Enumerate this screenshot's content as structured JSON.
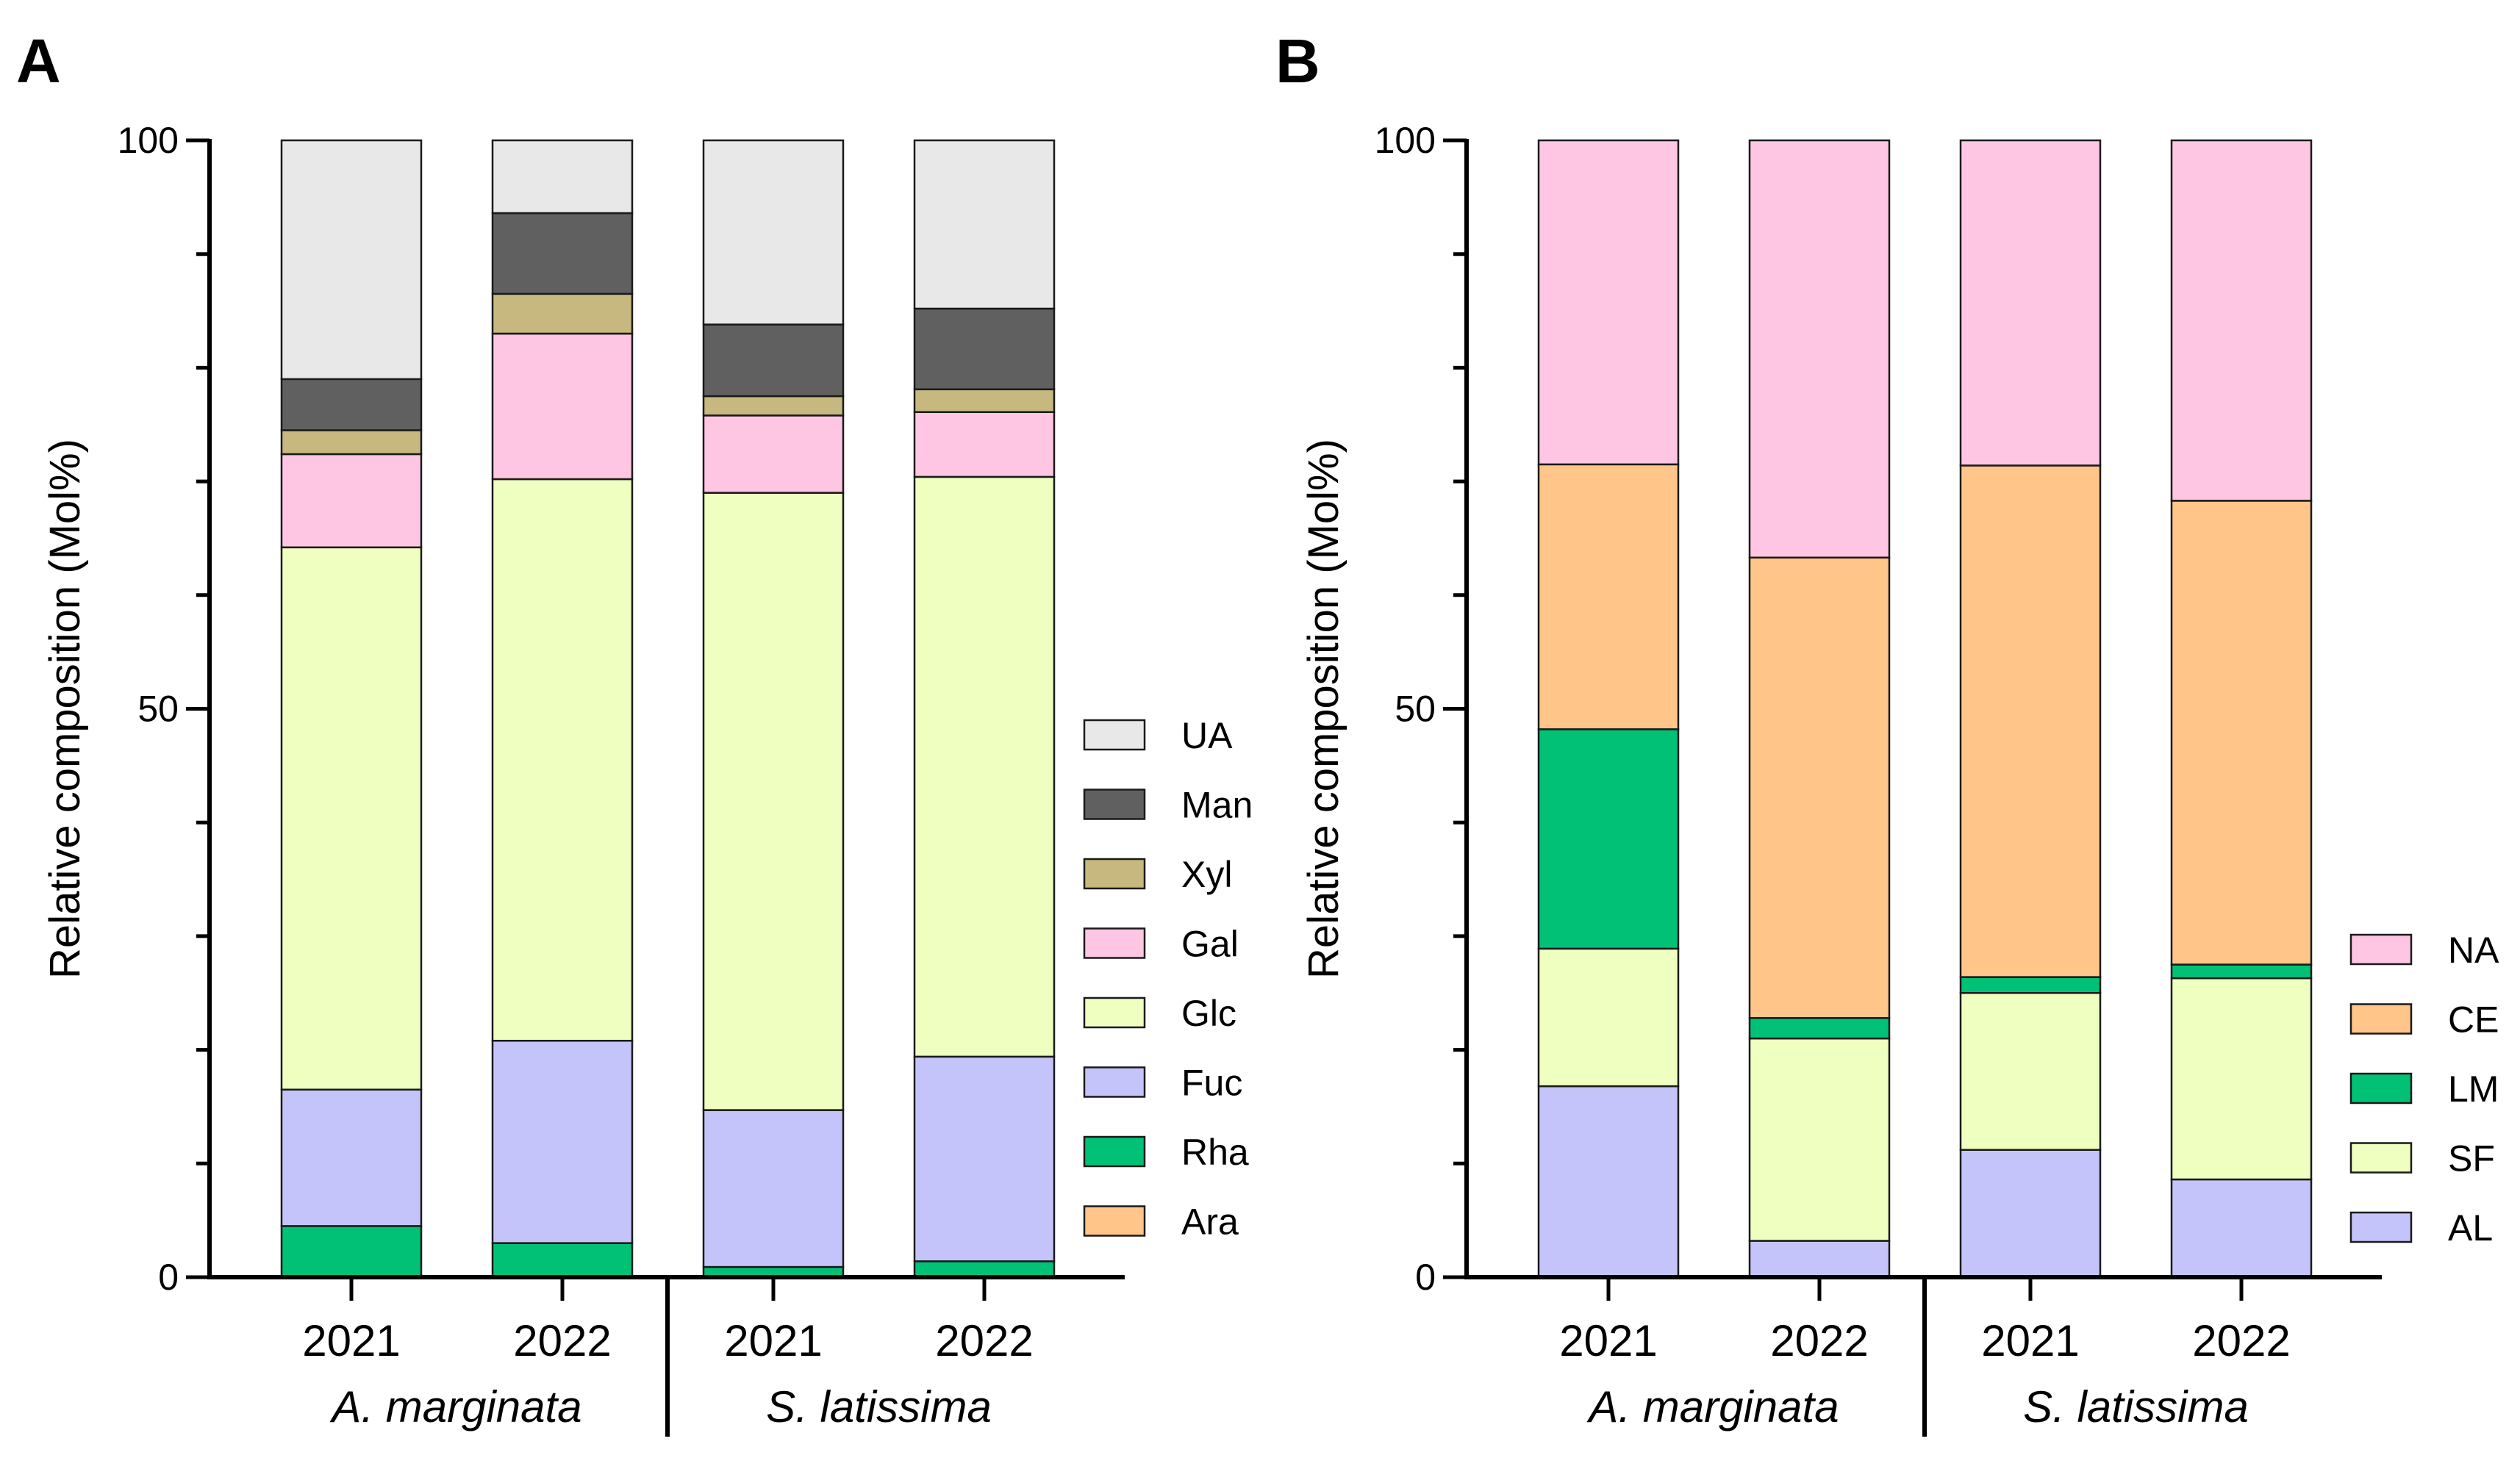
{
  "figure": {
    "panels": [
      "A",
      "B"
    ]
  },
  "chart_data": [
    {
      "panel": "A",
      "type": "bar",
      "stacked": true,
      "ylabel": "Relative composition (Mol%)",
      "ylim": [
        0,
        100
      ],
      "yticks": [
        "0",
        "50",
        "100"
      ],
      "categories": [
        "2021",
        "2022",
        "2021",
        "2022"
      ],
      "groups": [
        {
          "label": "A. marginata",
          "indices": [
            0,
            1
          ]
        },
        {
          "label": "S. latissima",
          "indices": [
            2,
            3
          ]
        }
      ],
      "legend_position": "right",
      "series": [
        {
          "name": "Ara",
          "color": "#FFC589",
          "values": [
            0,
            0,
            0,
            0
          ]
        },
        {
          "name": "Rha",
          "color": "#00C176",
          "values": [
            4.5,
            3.0,
            0.9,
            1.4
          ]
        },
        {
          "name": "Fuc",
          "color": "#C4C4FA",
          "values": [
            12.0,
            17.8,
            13.8,
            18.0
          ]
        },
        {
          "name": "Glc",
          "color": "#EEFFC0",
          "values": [
            47.7,
            49.4,
            54.3,
            51.0
          ]
        },
        {
          "name": "Gal",
          "color": "#FFC6E4",
          "values": [
            8.2,
            12.8,
            6.8,
            5.7
          ]
        },
        {
          "name": "Xyl",
          "color": "#C6B87E",
          "values": [
            2.1,
            3.5,
            1.7,
            2.0
          ]
        },
        {
          "name": "Man",
          "color": "#606060",
          "values": [
            4.5,
            7.1,
            6.3,
            7.1
          ]
        },
        {
          "name": "UA",
          "color": "#E8E8E8",
          "values": [
            21.0,
            6.4,
            16.2,
            14.8
          ]
        }
      ]
    },
    {
      "panel": "B",
      "type": "bar",
      "stacked": true,
      "ylabel": "Relative composition (Mol%)",
      "ylim": [
        0,
        100
      ],
      "yticks": [
        "0",
        "50",
        "100"
      ],
      "categories": [
        "2021",
        "2022",
        "2021",
        "2022"
      ],
      "groups": [
        {
          "label": "A. marginata",
          "indices": [
            0,
            1
          ]
        },
        {
          "label": "S. latissima",
          "indices": [
            2,
            3
          ]
        }
      ],
      "legend_position": "right",
      "series": [
        {
          "name": "AL",
          "color": "#C4C4FA",
          "values": [
            16.8,
            3.2,
            11.2,
            8.6
          ]
        },
        {
          "name": "SF",
          "color": "#EEFFC0",
          "values": [
            12.1,
            17.8,
            13.8,
            17.7
          ]
        },
        {
          "name": "LM",
          "color": "#00C176",
          "values": [
            19.3,
            1.8,
            1.4,
            1.2
          ]
        },
        {
          "name": "CE",
          "color": "#FFC589",
          "values": [
            23.3,
            40.5,
            45.0,
            40.8
          ]
        },
        {
          "name": "NA",
          "color": "#FFC6E4",
          "values": [
            28.5,
            36.7,
            28.6,
            31.7
          ]
        }
      ]
    }
  ]
}
